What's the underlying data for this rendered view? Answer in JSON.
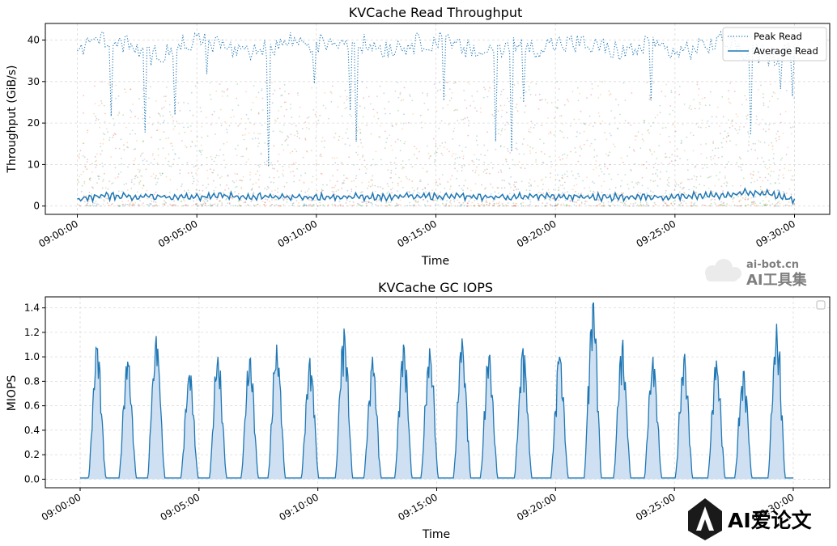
{
  "chart_data": [
    {
      "type": "line",
      "title": "KVCache Read Throughput",
      "xlabel": "Time",
      "ylabel": "Throughput (GiB/s)",
      "x_range": [
        "09:00:00",
        "09:30:00"
      ],
      "ylim": [
        -2,
        44
      ],
      "grid": true,
      "legend_position": "top-right",
      "x_ticks": [
        "09:00:00",
        "09:05:00",
        "09:10:00",
        "09:15:00",
        "09:20:00",
        "09:25:00",
        "09:30:00"
      ],
      "y_ticks": [
        0,
        10,
        20,
        30,
        40
      ],
      "series": [
        {
          "name": "Peak Read",
          "style": "dotted",
          "color": "#1f77b4",
          "x": [
            "09:00:00",
            "09:01:00",
            "09:02:00",
            "09:03:00",
            "09:04:00",
            "09:05:00",
            "09:06:00",
            "09:07:00",
            "09:08:00",
            "09:09:00",
            "09:10:00",
            "09:11:00",
            "09:12:00",
            "09:13:00",
            "09:14:00",
            "09:15:00",
            "09:16:00",
            "09:17:00",
            "09:18:00",
            "09:19:00",
            "09:20:00",
            "09:21:00",
            "09:22:00",
            "09:23:00",
            "09:24:00",
            "09:25:00",
            "09:26:00",
            "09:27:00",
            "09:28:00",
            "09:29:00",
            "09:30:00"
          ],
          "values": [
            37,
            41,
            39,
            36,
            38,
            40,
            39,
            36,
            38,
            40,
            39,
            40,
            39,
            38,
            39,
            40,
            38,
            37,
            39,
            38,
            39,
            39,
            38,
            37,
            39,
            37,
            38,
            40,
            37,
            36,
            38
          ]
        },
        {
          "name": "Average Read",
          "style": "solid",
          "color": "#1f77b4",
          "x": [
            "09:00:00",
            "09:01:00",
            "09:02:00",
            "09:03:00",
            "09:04:00",
            "09:05:00",
            "09:06:00",
            "09:07:00",
            "09:08:00",
            "09:09:00",
            "09:10:00",
            "09:11:00",
            "09:12:00",
            "09:13:00",
            "09:14:00",
            "09:15:00",
            "09:16:00",
            "09:17:00",
            "09:18:00",
            "09:19:00",
            "09:20:00",
            "09:21:00",
            "09:22:00",
            "09:23:00",
            "09:24:00",
            "09:25:00",
            "09:26:00",
            "09:27:00",
            "09:28:00",
            "09:29:00",
            "09:30:00"
          ],
          "values": [
            1.5,
            2.5,
            2.3,
            2.4,
            2.2,
            2.3,
            2.4,
            2.2,
            2.3,
            2.2,
            2.1,
            2.2,
            2.3,
            2.1,
            2.4,
            2.2,
            2.3,
            2.2,
            2.1,
            2.4,
            2.2,
            2.3,
            2.1,
            2.2,
            2.2,
            2.3,
            2.6,
            2.5,
            3.2,
            2.9,
            1.5
          ]
        }
      ],
      "background_scatter": {
        "description": "dense per-worker read samples",
        "range": [
          0,
          30
        ],
        "colors": [
          "#1f77b4",
          "#ff7f0e",
          "#2ca02c",
          "#d62728"
        ]
      }
    },
    {
      "type": "area",
      "title": "KVCache GC IOPS",
      "xlabel": "Time",
      "ylabel": "MIOPS",
      "x_range": [
        "09:00:00",
        "09:30:00"
      ],
      "ylim": [
        -0.07,
        1.49
      ],
      "grid": true,
      "legend_position": "top-right",
      "x_ticks": [
        "09:00:00",
        "09:05:00",
        "09:10:00",
        "09:15:00",
        "09:20:00",
        "09:25:00",
        "09:30:00"
      ],
      "y_ticks": [
        0.0,
        0.2,
        0.4,
        0.6,
        0.8,
        1.0,
        1.2,
        1.4
      ],
      "baseline": 0.01,
      "color": "#1f77b4",
      "fill_color": "#c6dbef",
      "peaks": [
        {
          "time": "09:00:43",
          "value": 1.07
        },
        {
          "time": "09:02:00",
          "value": 0.96
        },
        {
          "time": "09:03:12",
          "value": 1.17
        },
        {
          "time": "09:04:36",
          "value": 0.85
        },
        {
          "time": "09:05:48",
          "value": 1.0
        },
        {
          "time": "09:07:08",
          "value": 0.98
        },
        {
          "time": "09:08:16",
          "value": 1.1
        },
        {
          "time": "09:09:40",
          "value": 0.99
        },
        {
          "time": "09:11:06",
          "value": 1.23
        },
        {
          "time": "09:12:18",
          "value": 1.0
        },
        {
          "time": "09:13:36",
          "value": 1.1
        },
        {
          "time": "09:14:42",
          "value": 1.07
        },
        {
          "time": "09:16:04",
          "value": 1.15
        },
        {
          "time": "09:17:12",
          "value": 1.0
        },
        {
          "time": "09:18:38",
          "value": 1.07
        },
        {
          "time": "09:20:10",
          "value": 1.0
        },
        {
          "time": "09:21:34",
          "value": 1.43
        },
        {
          "time": "09:22:48",
          "value": 1.08
        },
        {
          "time": "09:24:06",
          "value": 1.0
        },
        {
          "time": "09:25:24",
          "value": 0.98
        },
        {
          "time": "09:26:46",
          "value": 0.97
        },
        {
          "time": "09:27:54",
          "value": 0.88
        },
        {
          "time": "09:29:18",
          "value": 1.27
        }
      ]
    }
  ],
  "watermarks": {
    "top_url": "ai-bot.cn",
    "top_name": "AI工具集",
    "bottom_name": "AI爱论文"
  }
}
